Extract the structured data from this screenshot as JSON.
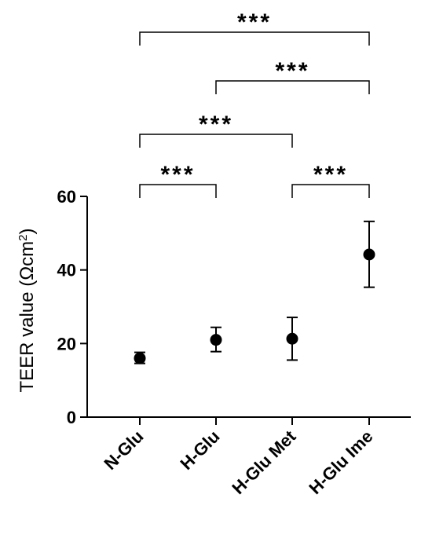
{
  "chart_data": {
    "type": "scatter",
    "categories": [
      "N-Glu",
      "H-Glu",
      "H-Glu Met",
      "H-Glu Ime"
    ],
    "values": [
      16,
      21,
      21.3,
      44.2
    ],
    "error_low": [
      14.6,
      17.8,
      15.5,
      35.3
    ],
    "error_high": [
      17.6,
      24.4,
      27.1,
      53.2
    ],
    "ylabel": "TEER value (Ωcm²)",
    "ylabel_main": "TEER value (Ωcm",
    "ylabel_sup": "2",
    "ylabel_end": ")",
    "ylim": [
      0,
      60
    ],
    "yticks": [
      0,
      20,
      40,
      60
    ],
    "grid": false,
    "significance": [
      {
        "from": 0,
        "to": 1,
        "label": "***"
      },
      {
        "from": 2,
        "to": 3,
        "label": "***"
      },
      {
        "from": 0,
        "to": 2,
        "label": "***"
      },
      {
        "from": 1,
        "to": 3,
        "label": "***"
      },
      {
        "from": 0,
        "to": 3,
        "label": "***"
      }
    ]
  }
}
